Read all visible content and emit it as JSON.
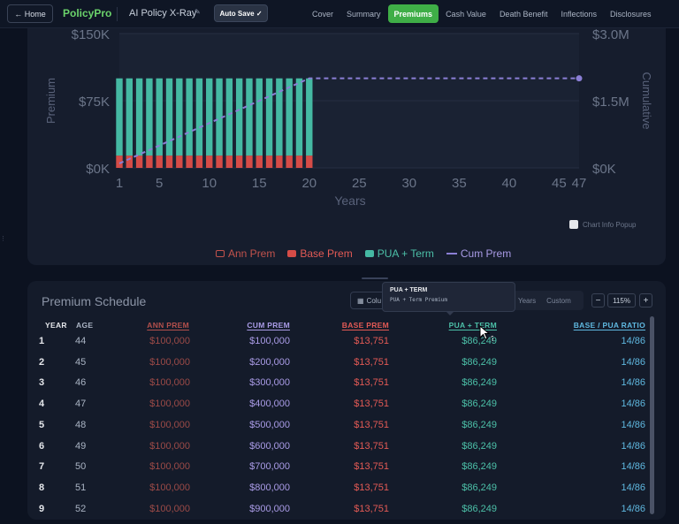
{
  "header": {
    "home_label": "← Home",
    "brand": "PolicyPro",
    "policy_name": "AI Policy X-Ray",
    "autosave_label": "Auto Save ✓",
    "tabs": [
      "Cover",
      "Summary",
      "Premiums",
      "Cash Value",
      "Death Benefit",
      "Inflections",
      "Disclosures"
    ],
    "active_tab": "Premiums"
  },
  "chart": {
    "y_left_ticks": [
      "$0K",
      "$75K",
      "$150K"
    ],
    "y_right_ticks": [
      "$0K",
      "$1.5M",
      "$3.0M"
    ],
    "x_ticks": [
      "1",
      "5",
      "10",
      "15",
      "20",
      "25",
      "30",
      "35",
      "40",
      "45",
      "47"
    ],
    "ylabel_left": "Premium",
    "ylabel_right": "Cumulative",
    "xlabel": "Years",
    "legend": {
      "ann": "Ann Prem",
      "base": "Base Prem",
      "pua": "PUA + Term",
      "cum": "Cum Prem"
    },
    "popup_toggle_label": "Chart Info Popup"
  },
  "chart_data": {
    "type": "bar",
    "x": [
      1,
      2,
      3,
      4,
      5,
      6,
      7,
      8,
      9,
      10,
      11,
      12,
      13,
      14,
      15,
      16,
      17,
      18,
      19,
      20
    ],
    "series": [
      {
        "name": "Base Prem",
        "values": [
          13751,
          13751,
          13751,
          13751,
          13751,
          13751,
          13751,
          13751,
          13751,
          13751,
          13751,
          13751,
          13751,
          13751,
          13751,
          13751,
          13751,
          13751,
          13751,
          13751
        ]
      },
      {
        "name": "PUA + Term",
        "values": [
          86249,
          86249,
          86249,
          86249,
          86249,
          86249,
          86249,
          86249,
          86249,
          86249,
          86249,
          86249,
          86249,
          86249,
          86249,
          86249,
          86249,
          86249,
          86249,
          86249
        ]
      },
      {
        "name": "Cum Prem",
        "type": "line",
        "values": [
          100000,
          200000,
          300000,
          400000,
          500000,
          600000,
          700000,
          800000,
          900000,
          1000000,
          1100000,
          1200000,
          1300000,
          1400000,
          1500000,
          1600000,
          1700000,
          1800000,
          1900000,
          2000000
        ],
        "extends_to_year": 47
      }
    ],
    "xlabel": "Years",
    "ylabel": "Premium",
    "y2label": "Cumulative",
    "xlim": [
      1,
      47
    ],
    "ylim": [
      0,
      150000
    ],
    "y2lim": [
      0,
      3000000
    ],
    "grid": true,
    "legend_position": "bottom"
  },
  "table": {
    "title": "Premium Schedule",
    "columns_button": "Colu",
    "range_options": [
      "Years",
      "Custom"
    ],
    "zoom": "115%",
    "zoom_minus": "−",
    "zoom_plus": "+",
    "tooltip_title": "PUA + TERM",
    "tooltip_body": "PUA + Term Premium",
    "headers": {
      "year": "YEAR",
      "age": "AGE",
      "ann": "ANN PREM",
      "cum": "CUM PREM",
      "base": "BASE PREM",
      "pua": "PUA + TERM",
      "ratio": "BASE / PUA RATIO"
    },
    "rows": [
      {
        "year": "1",
        "age": "44",
        "ann": "$100,000",
        "cum": "$100,000",
        "base": "$13,751",
        "pua": "$86,249",
        "ratio": "14/86"
      },
      {
        "year": "2",
        "age": "45",
        "ann": "$100,000",
        "cum": "$200,000",
        "base": "$13,751",
        "pua": "$86,249",
        "ratio": "14/86"
      },
      {
        "year": "3",
        "age": "46",
        "ann": "$100,000",
        "cum": "$300,000",
        "base": "$13,751",
        "pua": "$86,249",
        "ratio": "14/86"
      },
      {
        "year": "4",
        "age": "47",
        "ann": "$100,000",
        "cum": "$400,000",
        "base": "$13,751",
        "pua": "$86,249",
        "ratio": "14/86"
      },
      {
        "year": "5",
        "age": "48",
        "ann": "$100,000",
        "cum": "$500,000",
        "base": "$13,751",
        "pua": "$86,249",
        "ratio": "14/86"
      },
      {
        "year": "6",
        "age": "49",
        "ann": "$100,000",
        "cum": "$600,000",
        "base": "$13,751",
        "pua": "$86,249",
        "ratio": "14/86"
      },
      {
        "year": "7",
        "age": "50",
        "ann": "$100,000",
        "cum": "$700,000",
        "base": "$13,751",
        "pua": "$86,249",
        "ratio": "14/86"
      },
      {
        "year": "8",
        "age": "51",
        "ann": "$100,000",
        "cum": "$800,000",
        "base": "$13,751",
        "pua": "$86,249",
        "ratio": "14/86"
      },
      {
        "year": "9",
        "age": "52",
        "ann": "$100,000",
        "cum": "$900,000",
        "base": "$13,751",
        "pua": "$86,249",
        "ratio": "14/86"
      }
    ]
  },
  "colors": {
    "accent": "#3fae47",
    "base": "#d54c47",
    "pua": "#45b9a3",
    "cum": "#8b7fd6"
  }
}
